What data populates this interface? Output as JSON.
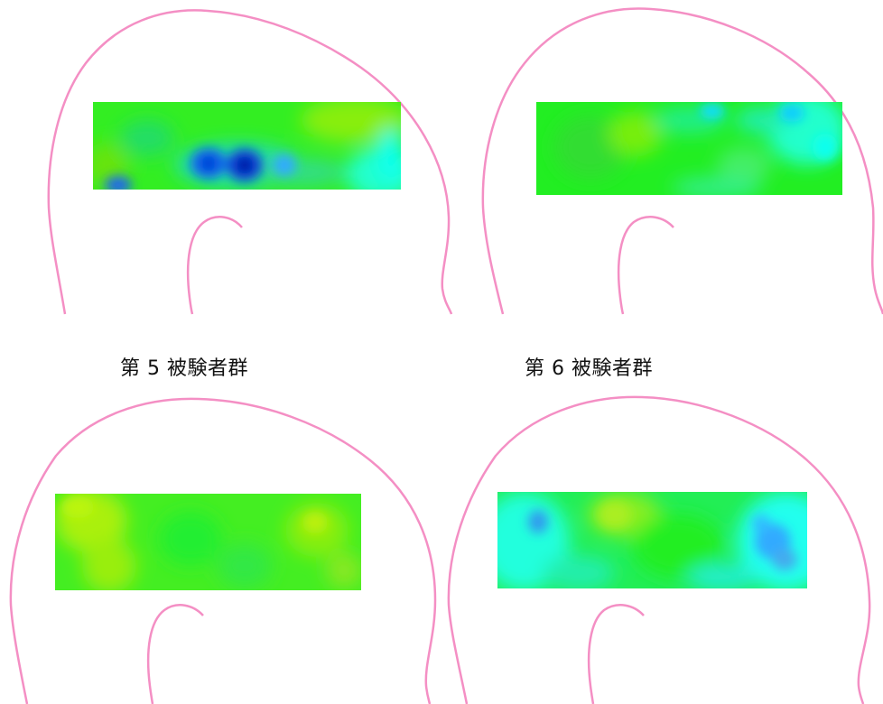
{
  "colors": {
    "outline": "#f48fc4",
    "background": "#ffffff"
  },
  "panels": [
    {
      "id": "top-left",
      "caption": null,
      "heatmap": "mostly green with blue hot spots in lower middle"
    },
    {
      "id": "top-right",
      "caption": null,
      "heatmap": "green with cyan areas on the right"
    },
    {
      "id": "bottom-left",
      "caption": "第 5 被験者群",
      "heatmap": "green with yellow-green areas"
    },
    {
      "id": "bottom-right",
      "caption": "第 6 被験者群",
      "heatmap": "cyan edges with green center and blue spots"
    }
  ]
}
